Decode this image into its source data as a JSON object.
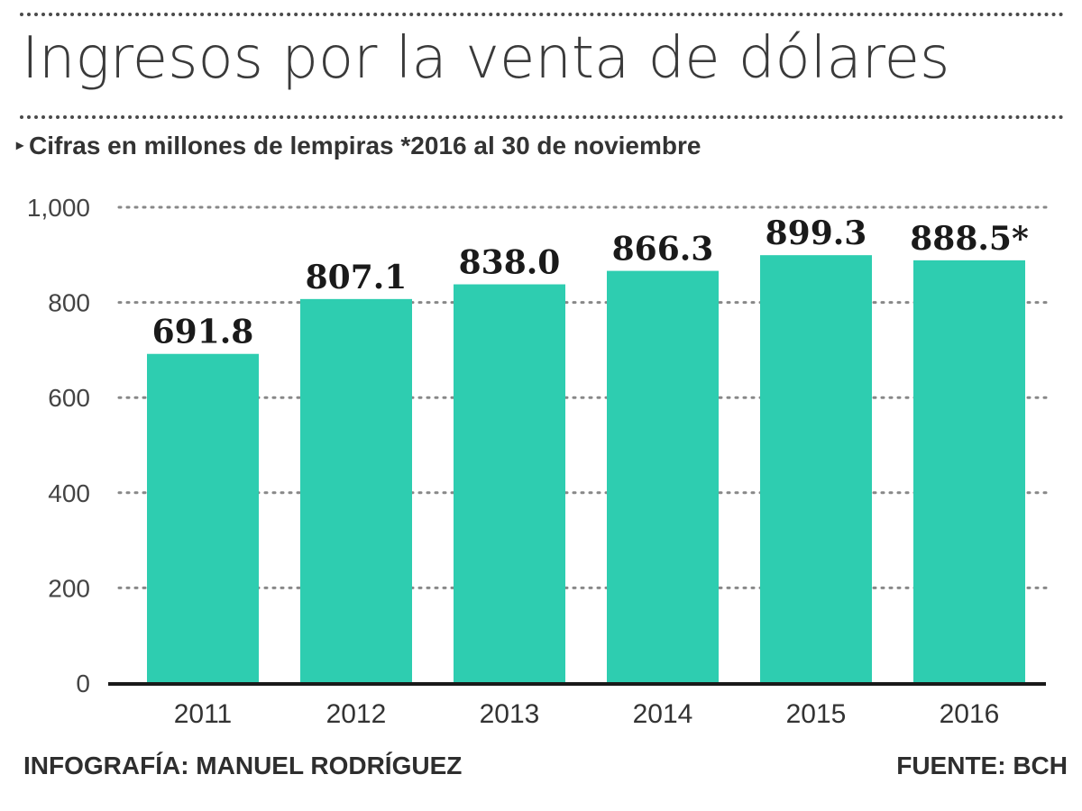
{
  "header": {
    "title": "Ingresos por la venta de dólares",
    "subtitle": "Cifras en millones de lempiras *2016 al 30 de noviembre",
    "subtitle_marker": "▸"
  },
  "footer": {
    "credit": "INFOGRAFÍA: MANUEL RODRÍGUEZ",
    "source": "FUENTE: BCH"
  },
  "colors": {
    "bar": "#2ecdb0",
    "grid": "#888888",
    "axis": "#1a1a1a"
  },
  "chart_data": {
    "type": "bar",
    "title": "Ingresos por la venta de dólares",
    "subtitle": "Cifras en millones de lempiras *2016 al 30 de noviembre",
    "xlabel": "",
    "ylabel": "",
    "ylim": [
      0,
      1000
    ],
    "yticks": [
      0,
      200,
      400,
      600,
      800,
      1000
    ],
    "ytick_labels": [
      "0",
      "200",
      "400",
      "600",
      "800",
      "1,000"
    ],
    "grid": true,
    "categories": [
      "2011",
      "2012",
      "2013",
      "2014",
      "2015",
      "2016"
    ],
    "values": [
      691.8,
      807.1,
      838.0,
      866.3,
      899.3,
      888.5
    ],
    "value_labels": [
      "691.8",
      "807.1",
      "838.0",
      "866.3",
      "899.3",
      "888.5*"
    ]
  }
}
